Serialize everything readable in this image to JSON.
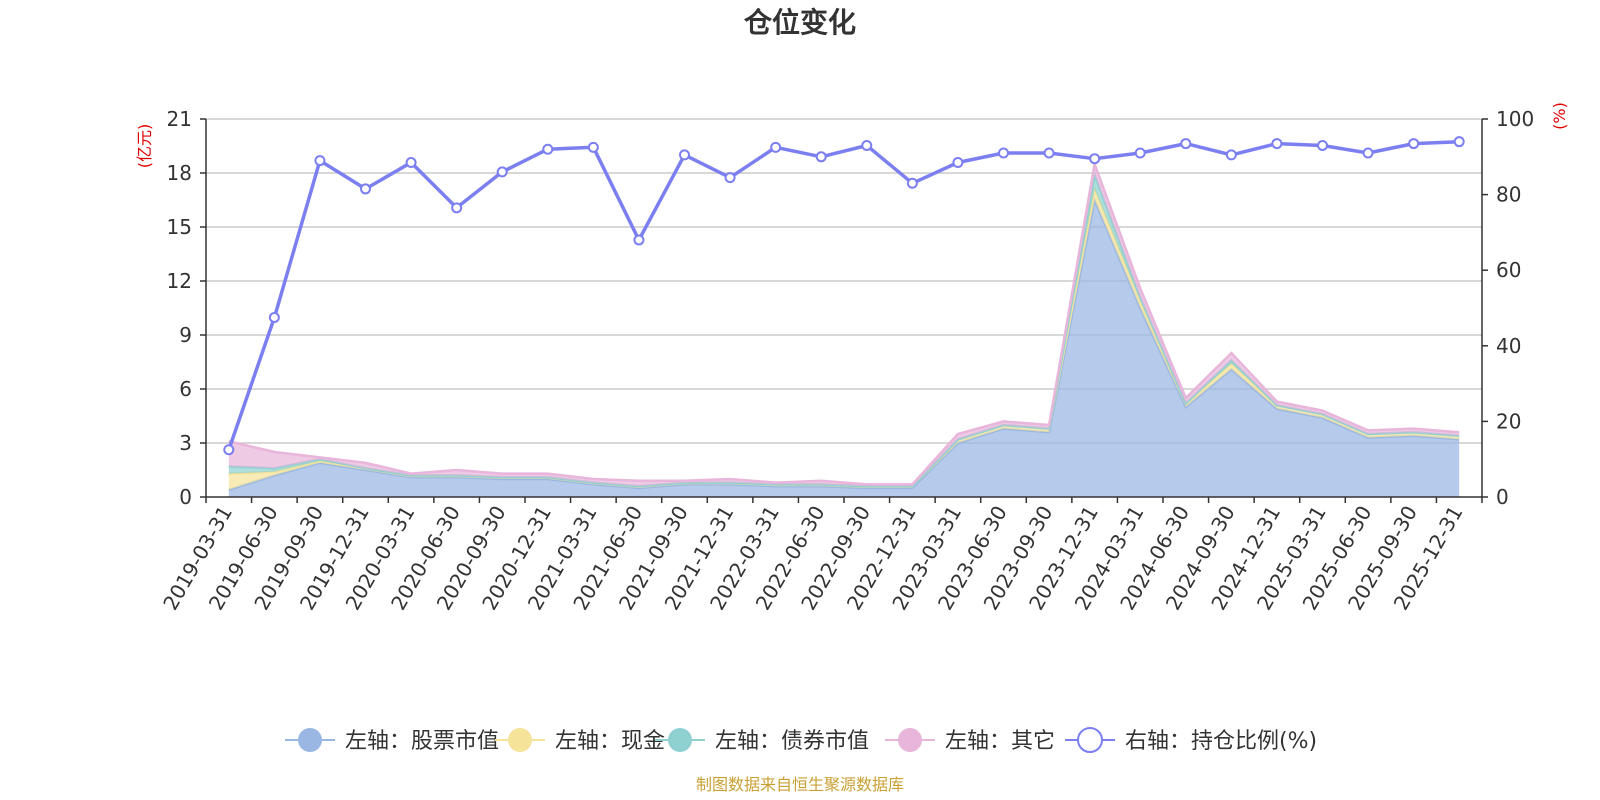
{
  "title": "仓位变化",
  "source": "制图数据来自恒生聚源数据库",
  "chart_data": {
    "type": "area",
    "title": "仓位变化",
    "left_axis": {
      "unit": "(亿元)",
      "ylim": [
        0,
        21
      ],
      "ticks": [
        0,
        3,
        6,
        9,
        12,
        15,
        18,
        21
      ]
    },
    "right_axis": {
      "unit": "(%)",
      "ylim": [
        0,
        100
      ],
      "ticks": [
        0,
        20,
        40,
        60,
        80,
        100
      ]
    },
    "grid": true,
    "stacked": true,
    "legend_position": "bottom",
    "categories": [
      "2019-03-31",
      "2019-06-30",
      "2019-09-30",
      "2019-12-31",
      "2020-03-31",
      "2020-06-30",
      "2020-09-30",
      "2020-12-31",
      "2021-03-31",
      "2021-06-30",
      "2021-09-30",
      "2021-12-31",
      "2022-03-31",
      "2022-06-30",
      "2022-09-30",
      "2022-12-31",
      "2023-03-31",
      "2023-06-30",
      "2023-09-30",
      "2023-12-31",
      "2024-03-31",
      "2024-06-30",
      "2024-09-30",
      "2024-12-31",
      "2025-03-31",
      "2025-06-30",
      "2025-09-30",
      "2025-12-31"
    ],
    "series": [
      {
        "name": "左轴：股票市值",
        "axis": "left",
        "color": "#9ab7e3",
        "values": [
          0.4,
          1.2,
          1.9,
          1.5,
          1.1,
          1.1,
          1.0,
          1.0,
          0.7,
          0.5,
          0.7,
          0.7,
          0.6,
          0.6,
          0.5,
          0.5,
          3.0,
          3.8,
          3.6,
          16.5,
          10.5,
          5.0,
          7.1,
          4.9,
          4.4,
          3.3,
          3.4,
          3.2
        ]
      },
      {
        "name": "左轴：现金",
        "axis": "left",
        "color": "#f5e39a",
        "values": [
          0.9,
          0.2,
          0.1,
          0.1,
          0.1,
          0.1,
          0.1,
          0.1,
          0.1,
          0.1,
          0.1,
          0.1,
          0.1,
          0.1,
          0.1,
          0.1,
          0.2,
          0.2,
          0.2,
          0.6,
          0.4,
          0.2,
          0.3,
          0.2,
          0.2,
          0.2,
          0.2,
          0.2
        ]
      },
      {
        "name": "左轴：债券市值",
        "axis": "left",
        "color": "#8fd1d1",
        "values": [
          0.4,
          0.2,
          0.1,
          0.0,
          0.0,
          0.0,
          0.0,
          0.0,
          0.0,
          0.0,
          0.0,
          0.0,
          0.0,
          0.0,
          0.0,
          0.0,
          0.0,
          0.0,
          0.0,
          0.8,
          0.2,
          0.0,
          0.2,
          0.0,
          0.0,
          0.0,
          0.0,
          0.0
        ]
      },
      {
        "name": "左轴：其它",
        "axis": "left",
        "color": "#e8b5db",
        "values": [
          1.4,
          0.9,
          0.1,
          0.3,
          0.1,
          0.3,
          0.2,
          0.2,
          0.2,
          0.3,
          0.1,
          0.2,
          0.1,
          0.2,
          0.1,
          0.1,
          0.3,
          0.2,
          0.2,
          0.6,
          0.5,
          0.3,
          0.4,
          0.2,
          0.2,
          0.2,
          0.2,
          0.2
        ]
      },
      {
        "name": "右轴：持仓比例(%)",
        "axis": "right",
        "color": "#7b7ff0",
        "values": [
          12.5,
          47.5,
          89.0,
          81.5,
          88.5,
          76.5,
          86.0,
          92.0,
          92.5,
          68.0,
          90.5,
          84.5,
          92.5,
          90.0,
          93.0,
          83.0,
          88.5,
          91.0,
          91.0,
          89.5,
          91.0,
          93.5,
          90.5,
          93.5,
          93.0,
          91.0,
          93.5,
          94.0
        ]
      }
    ]
  }
}
